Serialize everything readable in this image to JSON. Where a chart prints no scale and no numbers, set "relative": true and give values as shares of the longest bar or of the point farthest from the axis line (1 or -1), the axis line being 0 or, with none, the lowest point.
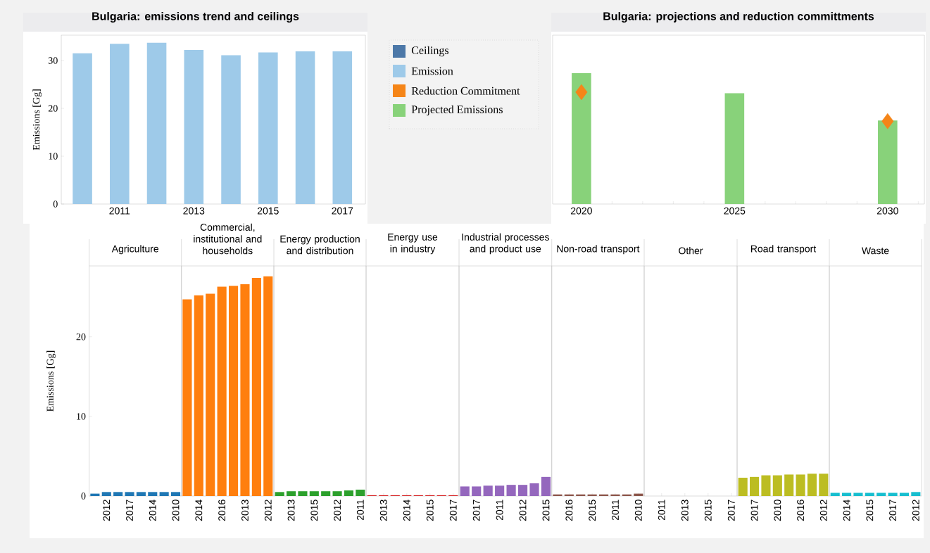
{
  "chart_data": [
    {
      "type": "bar",
      "title": "Bulgaria: emissions trend and ceilings",
      "ylabel": "Emissions [Gg]",
      "x": [
        2010,
        2011,
        2012,
        2013,
        2014,
        2015,
        2016,
        2017
      ],
      "series": [
        {
          "name": "Ceilings",
          "color": "#4c78a8",
          "values": [
            null,
            null,
            null,
            null,
            null,
            null,
            null,
            null
          ]
        },
        {
          "name": "Emission",
          "color": "#9ecae9",
          "values": [
            31.5,
            33.5,
            33.7,
            32.2,
            31.1,
            31.7,
            31.9,
            31.9
          ]
        }
      ],
      "xlim": [
        2009.43,
        2017.62
      ],
      "ylim": [
        0,
        35.3
      ],
      "xticks": [
        {
          "value": 2010,
          "label": null
        },
        2011,
        {
          "value": 2012,
          "label": null
        },
        2013,
        {
          "value": 2014,
          "label": null
        },
        2015,
        {
          "value": 2016,
          "label": null
        },
        2017
      ],
      "yticks": [
        0,
        10,
        20,
        30
      ],
      "legend": "right"
    },
    {
      "type": "bar",
      "title": "Bulgaria: projections and reduction committments",
      "relative": true,
      "series": [
        {
          "name": "Reduction Commitment",
          "type": "scatter",
          "marker": "diamond",
          "color": "#f58518",
          "x": [
            2020,
            2030
          ],
          "values": [
            0.855,
            0.633
          ]
        },
        {
          "name": "Projected Emissions",
          "type": "bar",
          "color": "#88d27a",
          "x": [
            2020,
            2025,
            2030
          ],
          "values": [
            1,
            0.847,
            0.638
          ]
        }
      ],
      "xlim": [
        2019.06,
        2031.2
      ],
      "xticks": [
        2020,
        {
          "value": 2021,
          "label": null
        },
        {
          "value": 2022,
          "label": null
        },
        {
          "value": 2023,
          "label": null
        },
        {
          "value": 2024,
          "label": null
        },
        2025,
        {
          "value": 2026,
          "label": null
        },
        {
          "value": 2027,
          "label": null
        },
        {
          "value": 2028,
          "label": null
        },
        {
          "value": 2029,
          "label": null
        },
        2030,
        {
          "value": 2031,
          "label": null
        }
      ],
      "legend": "left"
    },
    {
      "type": "bar",
      "title": "Agriculture",
      "ylabel": "Emissions [Gg]",
      "categories": [
        null,
        "2012",
        null,
        "2017",
        null,
        "2014",
        null,
        "2010"
      ],
      "values": [
        0.3,
        0.5,
        0.5,
        0.5,
        0.5,
        0.5,
        0.5,
        0.5
      ],
      "color": "#1f77b4",
      "ylim": [
        0,
        28.9
      ],
      "yticks": [
        0,
        10,
        20
      ]
    },
    {
      "type": "bar",
      "title": "Commercial, institutional and households",
      "categories": [
        null,
        "2014",
        null,
        "2016",
        null,
        "2013",
        null,
        "2012"
      ],
      "values": [
        24.7,
        25.2,
        25.4,
        26.3,
        26.4,
        26.6,
        27.4,
        27.6
      ],
      "color": "#ff7f0e",
      "ylim": [
        0,
        28.9
      ],
      "tick_labels": "x"
    },
    {
      "type": "bar",
      "title": "Energy production and distribution",
      "categories": [
        null,
        "2013",
        null,
        "2015",
        null,
        "2012",
        null,
        "2011"
      ],
      "values": [
        0.5,
        0.6,
        0.6,
        0.6,
        0.6,
        0.6,
        0.7,
        0.8
      ],
      "color": "#2ca02c",
      "ylim": [
        0,
        28.9
      ],
      "tick_labels": "x"
    },
    {
      "type": "bar",
      "title": "Energy use in industry",
      "categories": [
        null,
        "2013",
        null,
        "2014",
        null,
        "2015",
        null,
        "2017"
      ],
      "values": [
        0.1,
        0.1,
        0.1,
        0.1,
        0.1,
        0.1,
        0.1,
        0.1
      ],
      "color": "#d62728",
      "ylim": [
        0,
        28.9
      ],
      "tick_labels": "x"
    },
    {
      "type": "bar",
      "title": "Industrial processes and product use",
      "categories": [
        null,
        "2017",
        null,
        "2011",
        null,
        "2012",
        null,
        "2015"
      ],
      "values": [
        1.2,
        1.2,
        1.3,
        1.3,
        1.4,
        1.4,
        1.6,
        2.4
      ],
      "color": "#9467bd",
      "ylim": [
        0,
        28.9
      ],
      "tick_labels": "x"
    },
    {
      "type": "bar",
      "title": "Non-road transport",
      "categories": [
        null,
        "2016",
        null,
        "2015",
        null,
        "2011",
        null,
        "2010"
      ],
      "values": [
        0.2,
        0.2,
        0.2,
        0.2,
        0.2,
        0.2,
        0.2,
        0.3
      ],
      "color": "#8c564b",
      "ylim": [
        0,
        28.9
      ],
      "tick_labels": "x"
    },
    {
      "type": "bar",
      "title": "Other",
      "categories": [
        null,
        "2011",
        null,
        "2013",
        null,
        "2015",
        null,
        "2017"
      ],
      "values": [
        0,
        0,
        0,
        0,
        0,
        0,
        0,
        0
      ],
      "color": "#e377c2",
      "ylim": [
        0,
        28.9
      ],
      "tick_labels": "x"
    },
    {
      "type": "bar",
      "title": "Road transport",
      "categories": [
        null,
        "2017",
        null,
        "2010",
        null,
        "2016",
        null,
        "2012"
      ],
      "values": [
        2.3,
        2.4,
        2.6,
        2.6,
        2.7,
        2.7,
        2.8,
        2.8
      ],
      "color": "#bcbd22",
      "ylim": [
        0,
        28.9
      ],
      "tick_labels": "x"
    },
    {
      "type": "bar",
      "title": "Waste",
      "categories": [
        null,
        "2014",
        null,
        "2015",
        null,
        "2017",
        null,
        "2012"
      ],
      "values": [
        0.4,
        0.4,
        0.4,
        0.4,
        0.4,
        0.4,
        0.4,
        0.5
      ],
      "color": "#17becf",
      "ylim": [
        0,
        28.9
      ],
      "tick_labels": "x"
    }
  ]
}
